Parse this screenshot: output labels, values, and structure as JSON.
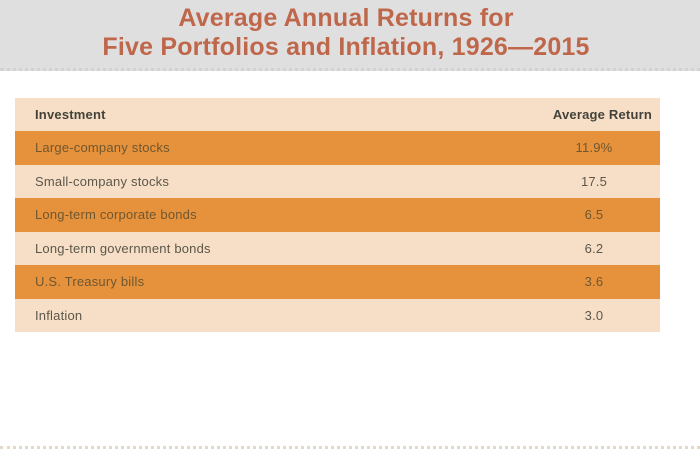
{
  "figure": {
    "title_line1": "Average Annual Returns for",
    "title_line2": "Five Portfolios and Inflation, 1926—2015"
  },
  "table": {
    "header": {
      "investment": "Investment",
      "average_return": "Average Return"
    },
    "rows": [
      {
        "investment": "Large-company stocks",
        "average_return": "11.9%"
      },
      {
        "investment": "Small-company stocks",
        "average_return": "17.5"
      },
      {
        "investment": "Long-term corporate bonds",
        "average_return": "6.5"
      },
      {
        "investment": "Long-term government bonds",
        "average_return": "6.2"
      },
      {
        "investment": "U.S. Treasury bills",
        "average_return": "3.6"
      },
      {
        "investment": "Inflation",
        "average_return": "3.0"
      }
    ]
  },
  "chart_data": {
    "type": "table",
    "title": "Average Annual Returns for Five Portfolios and Inflation, 1926—2015",
    "columns": [
      "Investment",
      "Average Return"
    ],
    "rows": [
      [
        "Large-company stocks",
        "11.9%"
      ],
      [
        "Small-company stocks",
        "17.5"
      ],
      [
        "Long-term corporate bonds",
        "6.5"
      ],
      [
        "Long-term government bonds",
        "6.2"
      ],
      [
        "U.S. Treasury bills",
        "3.6"
      ],
      [
        "Inflation",
        "3.0"
      ]
    ],
    "units": "percent (average annual return, 1926–2015)"
  },
  "colors": {
    "title_text": "#bf674a",
    "title_band_bg": "#e0dfdf",
    "band_dots": "#d2d2d2",
    "row_orange": "#e6923c",
    "row_light": "#f6dfc6",
    "header_text": "#44433b",
    "text_on_orange": "#6f5730",
    "text_on_light": "#5d574b",
    "bottom_dots": "#e3d9c8"
  }
}
